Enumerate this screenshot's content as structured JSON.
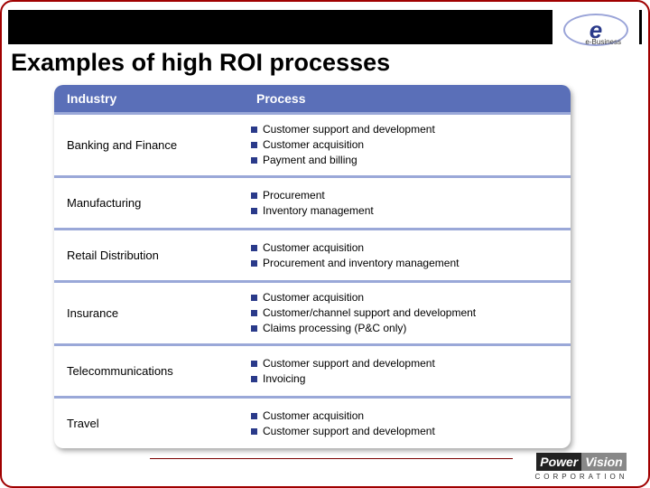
{
  "title": "Examples of high ROI processes",
  "logo_tr": {
    "letter": "e",
    "tag": "e-Business"
  },
  "logo_br": {
    "part1": "Power",
    "part2": "Vision",
    "sub": "CORPORATION"
  },
  "table": {
    "header": {
      "industry": "Industry",
      "process": "Process"
    },
    "header_bg": "#5a6fb8",
    "header_fg": "#ffffff",
    "bullet_color": "#2a3a8a",
    "rows": [
      {
        "industry": "Banking and Finance",
        "border_color": "#9aa8d8",
        "processes": [
          "Customer support and development",
          "Customer acquisition",
          "Payment and billing"
        ]
      },
      {
        "industry": "Manufacturing",
        "border_color": "#9aa8d8",
        "processes": [
          "Procurement",
          "Inventory management"
        ]
      },
      {
        "industry": "Retail Distribution",
        "border_color": "#9aa8d8",
        "processes": [
          "Customer acquisition",
          "Procurement and inventory management"
        ]
      },
      {
        "industry": "Insurance",
        "border_color": "#9aa8d8",
        "processes": [
          "Customer acquisition",
          "Customer/channel support and development",
          "Claims processing (P&C only)"
        ]
      },
      {
        "industry": "Telecommunications",
        "border_color": "#9aa8d8",
        "processes": [
          "Customer support and development",
          "Invoicing"
        ]
      },
      {
        "industry": "Travel",
        "border_color": "#9aa8d8",
        "processes": [
          "Customer acquisition",
          "Customer support and development"
        ]
      }
    ]
  },
  "colors": {
    "slide_border": "#a00000",
    "topbar": "#000000",
    "footer_line": "#7a0000"
  }
}
